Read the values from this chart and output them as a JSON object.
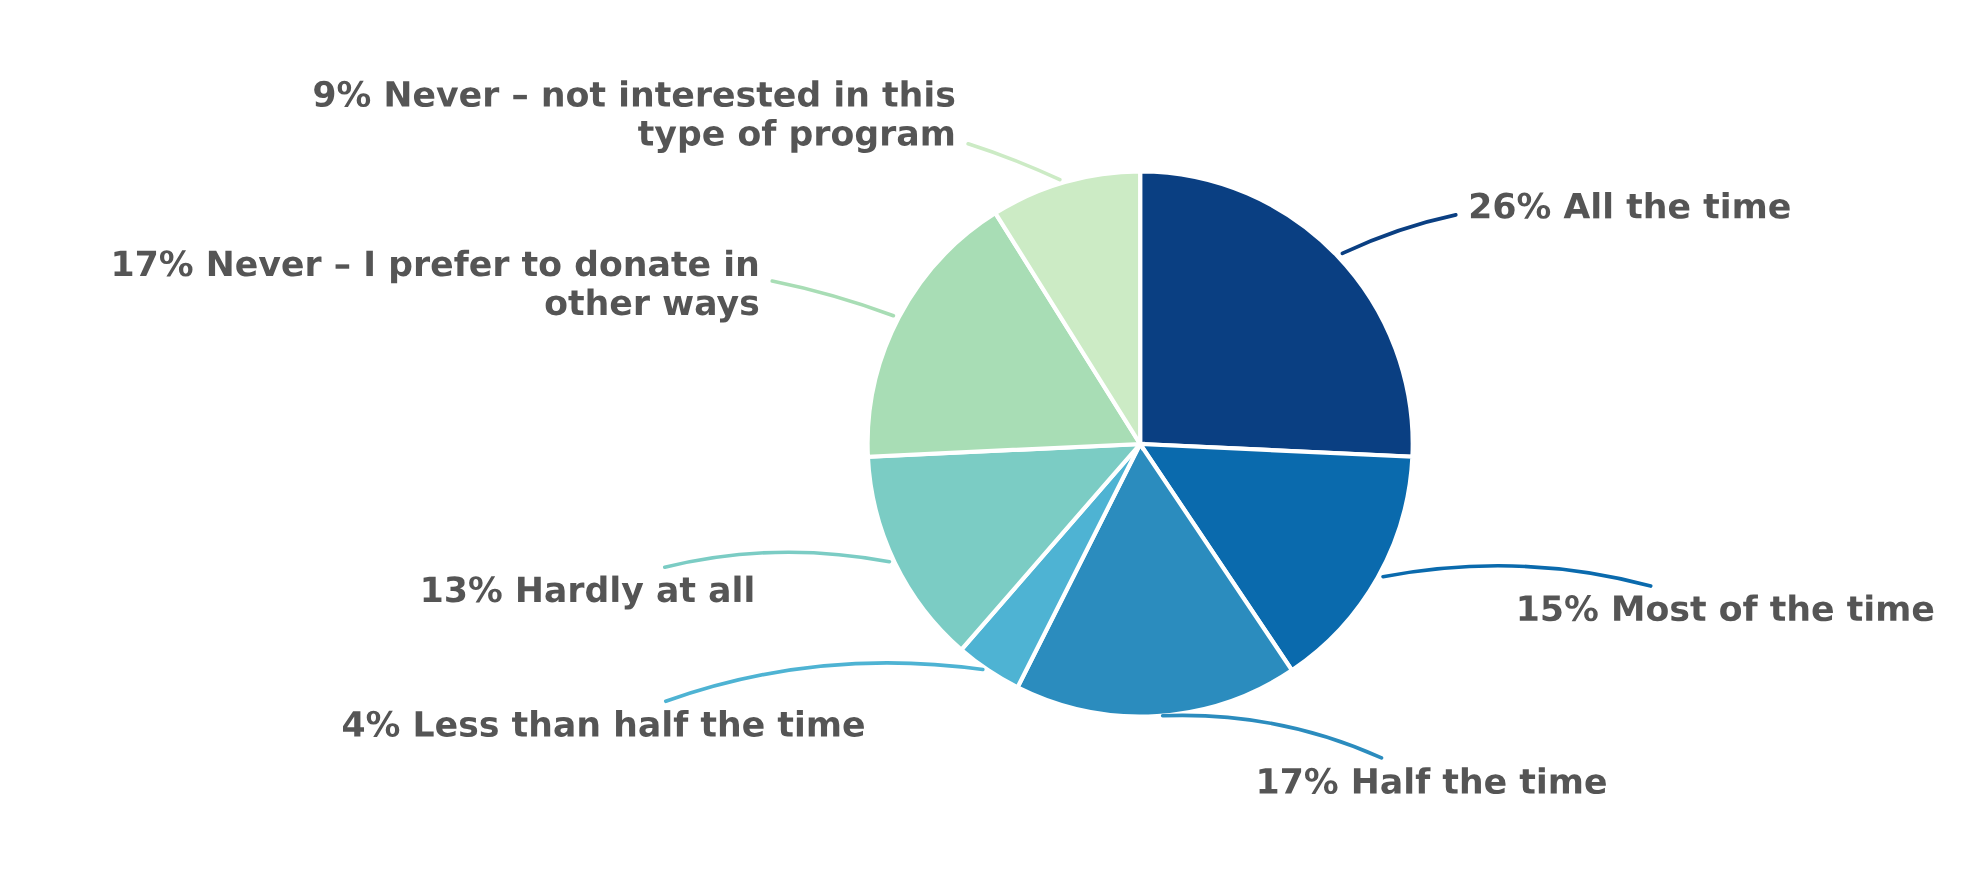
{
  "chart_data": {
    "type": "pie",
    "categories": [
      "All the time",
      "Most of the time",
      "Half the time",
      "Less than half the time",
      "Hardly at all",
      "Never – I prefer to donate in\nother ways",
      "Never – not interested in this\ntype of program"
    ],
    "values": [
      26,
      15,
      17,
      4,
      13,
      17,
      9
    ],
    "value_labels": [
      "26%",
      "15%",
      "17%",
      "4%",
      "13%",
      "17%",
      "9%"
    ],
    "colors": [
      "#0a3f82",
      "#0a6aad",
      "#2b8cbe",
      "#4eb3d3",
      "#7bccc4",
      "#a8ddb5",
      "#ccebc5"
    ],
    "legend": false
  }
}
